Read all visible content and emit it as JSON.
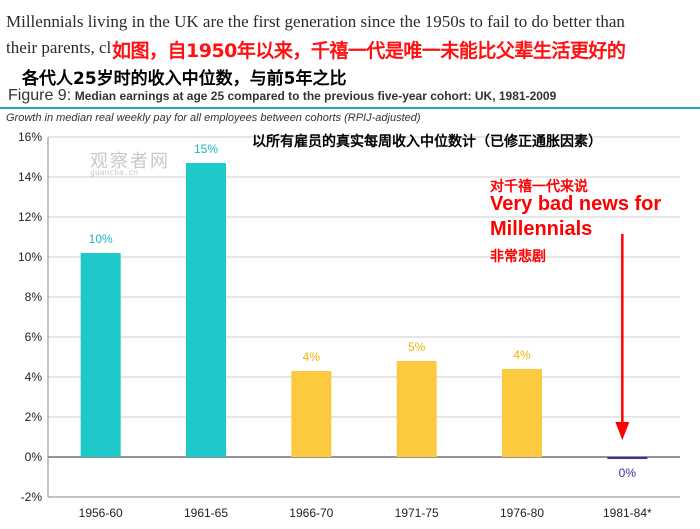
{
  "header": {
    "line1": "Millennials living in the UK are the first generation since the 1950s to fail to do better than",
    "line2": "their parents, cl",
    "red_cn": "如图，自1950年以来，千禧一代是唯一未能比父辈生活更好的",
    "sub_cn": "各代人25岁时的收入中位数，与前5年之比"
  },
  "figure": {
    "label": "Figure 9:",
    "title": "Median earnings at age 25 compared to the previous five-year cohort: UK, 1981-2009",
    "subtitle": "Growth in median real weekly pay for all employees between cohorts (RPIJ-adjusted)",
    "cn_note": "以所有雇员的真实每周收入中位数计（已修正通胀因素）"
  },
  "watermark": {
    "cn": "观察者网",
    "en": "guancha.cn"
  },
  "annotation": {
    "cn_top": "对千禧一代来说",
    "en_line1": "Very bad news for",
    "en_line2": "Millennials",
    "cn_bottom": "非常悲剧"
  },
  "chart_data": {
    "type": "bar",
    "categories": [
      "1956-60",
      "1961-65",
      "1966-70",
      "1971-75",
      "1976-80",
      "1981-84*"
    ],
    "values": [
      10.2,
      14.7,
      4.3,
      4.8,
      4.4,
      -0.1
    ],
    "data_labels": [
      "10%",
      "15%",
      "4%",
      "5%",
      "4%",
      "0%"
    ],
    "bar_colors": [
      "#20c9c9",
      "#20c9c9",
      "#fdc93f",
      "#fdc93f",
      "#fdc93f",
      "#3a2fa8"
    ],
    "label_colors": [
      "#1fb3c4",
      "#1fb3c4",
      "#f2b705",
      "#f2b705",
      "#f2b705",
      "#3a2fa8"
    ],
    "ylim": [
      -2,
      16
    ],
    "yticks": [
      -2,
      0,
      2,
      4,
      6,
      8,
      10,
      12,
      14,
      16
    ],
    "ytick_labels": [
      "-2%",
      "0%",
      "2%",
      "4%",
      "6%",
      "8%",
      "10%",
      "12%",
      "14%",
      "16%"
    ],
    "grid": true,
    "xlabel": "",
    "ylabel": "",
    "title": "Median earnings at age 25 compared to the previous five-year cohort: UK, 1981-2009"
  }
}
